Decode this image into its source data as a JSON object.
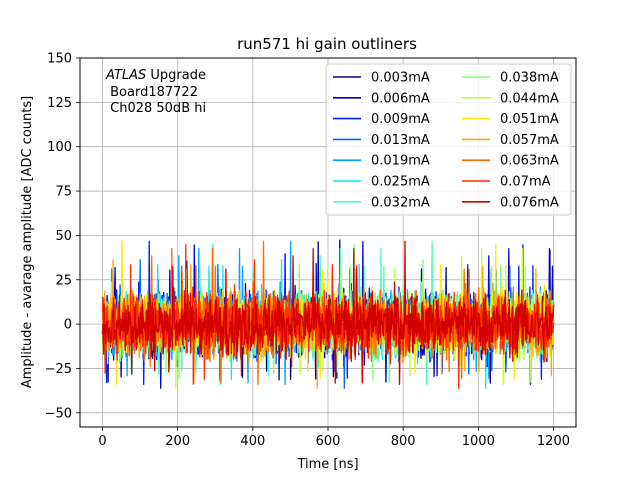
{
  "chart_data": {
    "type": "line",
    "title": "run571 hi gain outliners",
    "xlabel": "Time [ns]",
    "ylabel": "Amplitude - avarage amplitude [ADC counts]",
    "xlim": [
      -60,
      1260
    ],
    "ylim": [
      -58,
      150
    ],
    "xticks": [
      0,
      200,
      400,
      600,
      800,
      1000,
      1200
    ],
    "yticks": [
      -50,
      -25,
      0,
      25,
      50,
      75,
      100,
      125,
      150
    ],
    "grid": true,
    "legend_position": "upper-right",
    "legend_columns": 2,
    "annotation": {
      "line1_italic": "ATLAS",
      "line1_rest": " Upgrade",
      "line2": " Board187722",
      "line3": " Ch028 50dB hi"
    },
    "x_range": [
      0,
      1200
    ],
    "noise_band": {
      "typical_min": -25,
      "typical_max": 25,
      "peak_min": -37,
      "peak_max": 48
    },
    "series": [
      {
        "name": "0.003mA",
        "color": "#00008f"
      },
      {
        "name": "0.006mA",
        "color": "#0000d6"
      },
      {
        "name": "0.009mA",
        "color": "#0020ff"
      },
      {
        "name": "0.013mA",
        "color": "#0064ff"
      },
      {
        "name": "0.019mA",
        "color": "#00a4ff"
      },
      {
        "name": "0.025mA",
        "color": "#10e8ef"
      },
      {
        "name": "0.032mA",
        "color": "#4cffb4"
      },
      {
        "name": "0.038mA",
        "color": "#84ff7c"
      },
      {
        "name": "0.044mA",
        "color": "#c0ff40"
      },
      {
        "name": "0.051mA",
        "color": "#fce800"
      },
      {
        "name": "0.057mA",
        "color": "#ffaa00"
      },
      {
        "name": "0.063mA",
        "color": "#ff6c00"
      },
      {
        "name": "0.07mA",
        "color": "#ff2c00"
      },
      {
        "name": "0.076mA",
        "color": "#d20000"
      }
    ]
  }
}
